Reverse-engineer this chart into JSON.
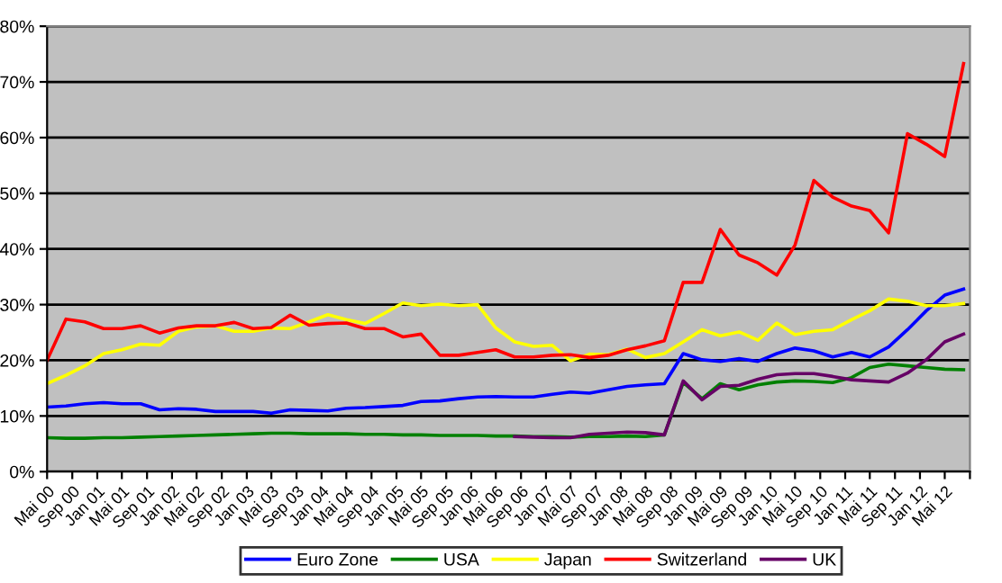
{
  "chart_data": {
    "type": "line",
    "x": [
      "2000-05",
      "2000-08",
      "2000-11",
      "2001-02",
      "2001-05",
      "2001-08",
      "2001-11",
      "2002-02",
      "2002-05",
      "2002-08",
      "2002-11",
      "2003-02",
      "2003-05",
      "2003-08",
      "2003-11",
      "2004-02",
      "2004-05",
      "2004-08",
      "2004-11",
      "2005-02",
      "2005-05",
      "2005-08",
      "2005-11",
      "2006-02",
      "2006-05",
      "2006-08",
      "2006-11",
      "2007-02",
      "2007-05",
      "2007-08",
      "2007-11",
      "2008-02",
      "2008-05",
      "2008-08",
      "2008-11",
      "2009-02",
      "2009-05",
      "2009-08",
      "2009-11",
      "2010-02",
      "2010-05",
      "2010-08",
      "2010-11",
      "2011-02",
      "2011-05",
      "2011-08",
      "2011-11",
      "2012-02",
      "2012-05",
      "2012-08"
    ],
    "series": [
      {
        "name": "Euro Zone",
        "color": "#0000ff",
        "values": [
          11.6,
          11.8,
          12.2,
          12.4,
          12.2,
          12.2,
          11.1,
          11.3,
          11.2,
          10.8,
          10.8,
          10.8,
          10.5,
          11.1,
          11.0,
          10.9,
          11.4,
          11.5,
          11.7,
          11.9,
          12.6,
          12.7,
          13.1,
          13.4,
          13.5,
          13.4,
          13.4,
          13.9,
          14.3,
          14.1,
          14.7,
          15.3,
          15.6,
          15.8,
          21.2,
          20.1,
          19.8,
          20.3,
          19.8,
          21.2,
          22.2,
          21.7,
          20.6,
          21.4,
          20.6,
          22.4,
          25.5,
          28.9,
          31.7,
          32.8
        ]
      },
      {
        "name": "USA",
        "color": "#008000",
        "values": [
          6.1,
          6.0,
          6.0,
          6.1,
          6.1,
          6.2,
          6.3,
          6.4,
          6.5,
          6.6,
          6.7,
          6.8,
          6.9,
          6.9,
          6.8,
          6.8,
          6.8,
          6.7,
          6.7,
          6.6,
          6.6,
          6.5,
          6.5,
          6.5,
          6.4,
          6.4,
          6.3,
          6.3,
          6.2,
          6.3,
          6.3,
          6.4,
          6.3,
          6.6,
          16.0,
          13.1,
          15.8,
          14.7,
          15.6,
          16.1,
          16.3,
          16.2,
          16.0,
          16.9,
          18.7,
          19.3,
          19.0,
          18.7,
          18.4,
          18.3
        ]
      },
      {
        "name": "Japan",
        "color": "#ffff00",
        "values": [
          15.8,
          17.3,
          19.0,
          21.2,
          21.9,
          22.9,
          22.7,
          25.2,
          26.0,
          26.2,
          25.2,
          25.2,
          25.8,
          25.7,
          26.9,
          28.2,
          27.3,
          26.6,
          28.4,
          30.3,
          29.8,
          30.1,
          29.8,
          30.0,
          25.8,
          23.3,
          22.5,
          22.7,
          19.9,
          21.1,
          21.0,
          22.0,
          20.5,
          21.2,
          23.3,
          25.5,
          24.4,
          25.1,
          23.6,
          26.7,
          24.6,
          25.2,
          25.5,
          27.3,
          28.9,
          31.0,
          30.6,
          29.8,
          29.8,
          30.2
        ]
      },
      {
        "name": "Switzerland",
        "color": "#ff0000",
        "values": [
          20.0,
          27.4,
          26.9,
          25.7,
          25.7,
          26.2,
          24.9,
          25.8,
          26.2,
          26.2,
          26.8,
          25.7,
          25.9,
          28.1,
          26.3,
          26.6,
          26.7,
          25.7,
          25.7,
          24.2,
          24.7,
          20.9,
          20.9,
          21.4,
          21.9,
          20.6,
          20.6,
          20.9,
          21.0,
          20.5,
          20.9,
          21.9,
          22.6,
          23.5,
          34.0,
          34.0,
          43.5,
          38.9,
          37.5,
          35.3,
          40.7,
          52.3,
          49.3,
          47.7,
          46.9,
          42.9,
          60.7,
          58.8,
          56.6,
          73.3
        ]
      },
      {
        "name": "UK",
        "color": "#660066",
        "values": [
          null,
          null,
          null,
          null,
          null,
          null,
          null,
          null,
          null,
          null,
          null,
          null,
          null,
          null,
          null,
          null,
          null,
          null,
          null,
          null,
          null,
          null,
          null,
          null,
          null,
          6.3,
          6.2,
          6.1,
          6.1,
          6.7,
          6.9,
          7.1,
          7.0,
          6.6,
          16.3,
          12.9,
          15.3,
          15.5,
          16.6,
          17.4,
          17.6,
          17.6,
          17.1,
          16.5,
          16.3,
          16.1,
          17.7,
          20.1,
          23.3,
          24.7
        ]
      }
    ],
    "xlim": [
      "2000-05",
      "2012-09"
    ],
    "xticks": [
      {
        "value": "2000-05",
        "label": "Mai 00"
      },
      {
        "value": "2000-09",
        "label": "Sep 00"
      },
      {
        "value": "2001-01",
        "label": "Jan 01"
      },
      {
        "value": "2001-05",
        "label": "Mai 01"
      },
      {
        "value": "2001-09",
        "label": "Sep 01"
      },
      {
        "value": "2002-01",
        "label": "Jan 02"
      },
      {
        "value": "2002-05",
        "label": "Mai 02"
      },
      {
        "value": "2002-09",
        "label": "Sep 02"
      },
      {
        "value": "2003-01",
        "label": "Jan 03"
      },
      {
        "value": "2003-05",
        "label": "Mai 03"
      },
      {
        "value": "2003-09",
        "label": "Sep 03"
      },
      {
        "value": "2004-01",
        "label": "Jan 04"
      },
      {
        "value": "2004-05",
        "label": "Mai 04"
      },
      {
        "value": "2004-09",
        "label": "Sep 04"
      },
      {
        "value": "2005-01",
        "label": "Jan 05"
      },
      {
        "value": "2005-05",
        "label": "Mai 05"
      },
      {
        "value": "2005-09",
        "label": "Sep 05"
      },
      {
        "value": "2006-01",
        "label": "Jan 06"
      },
      {
        "value": "2006-05",
        "label": "Mai 06"
      },
      {
        "value": "2006-09",
        "label": "Sep 06"
      },
      {
        "value": "2007-01",
        "label": "Jan 07"
      },
      {
        "value": "2007-05",
        "label": "Mai 07"
      },
      {
        "value": "2007-09",
        "label": "Sep 07"
      },
      {
        "value": "2008-01",
        "label": "Jan 08"
      },
      {
        "value": "2008-05",
        "label": "Mai 08"
      },
      {
        "value": "2008-09",
        "label": "Sep 08"
      },
      {
        "value": "2009-01",
        "label": "Jan 09"
      },
      {
        "value": "2009-05",
        "label": "Mai 09"
      },
      {
        "value": "2009-09",
        "label": "Sep 09"
      },
      {
        "value": "2010-01",
        "label": "Jan 10"
      },
      {
        "value": "2010-05",
        "label": "Mai 10"
      },
      {
        "value": "2010-09",
        "label": "Sep 10"
      },
      {
        "value": "2011-01",
        "label": "Jan 11"
      },
      {
        "value": "2011-05",
        "label": "Mai 11"
      },
      {
        "value": "2011-09",
        "label": "Sep 11"
      },
      {
        "value": "2012-01",
        "label": "Jan 12"
      },
      {
        "value": "2012-05",
        "label": "Mai 12"
      },
      {
        "value": "2012-09",
        "label": null
      }
    ],
    "ylim": [
      0,
      80
    ],
    "yticks": [
      {
        "value": 0,
        "label": "0%"
      },
      {
        "value": 10,
        "label": "10%"
      },
      {
        "value": 20,
        "label": "20%"
      },
      {
        "value": 30,
        "label": "30%"
      },
      {
        "value": 40,
        "label": "40%"
      },
      {
        "value": 50,
        "label": "50%"
      },
      {
        "value": 60,
        "label": "60%"
      },
      {
        "value": 70,
        "label": "70%"
      },
      {
        "value": 80,
        "label": "80%"
      }
    ],
    "grid": "y",
    "legend": "bottom",
    "marker": "none",
    "line_style": "solid"
  }
}
